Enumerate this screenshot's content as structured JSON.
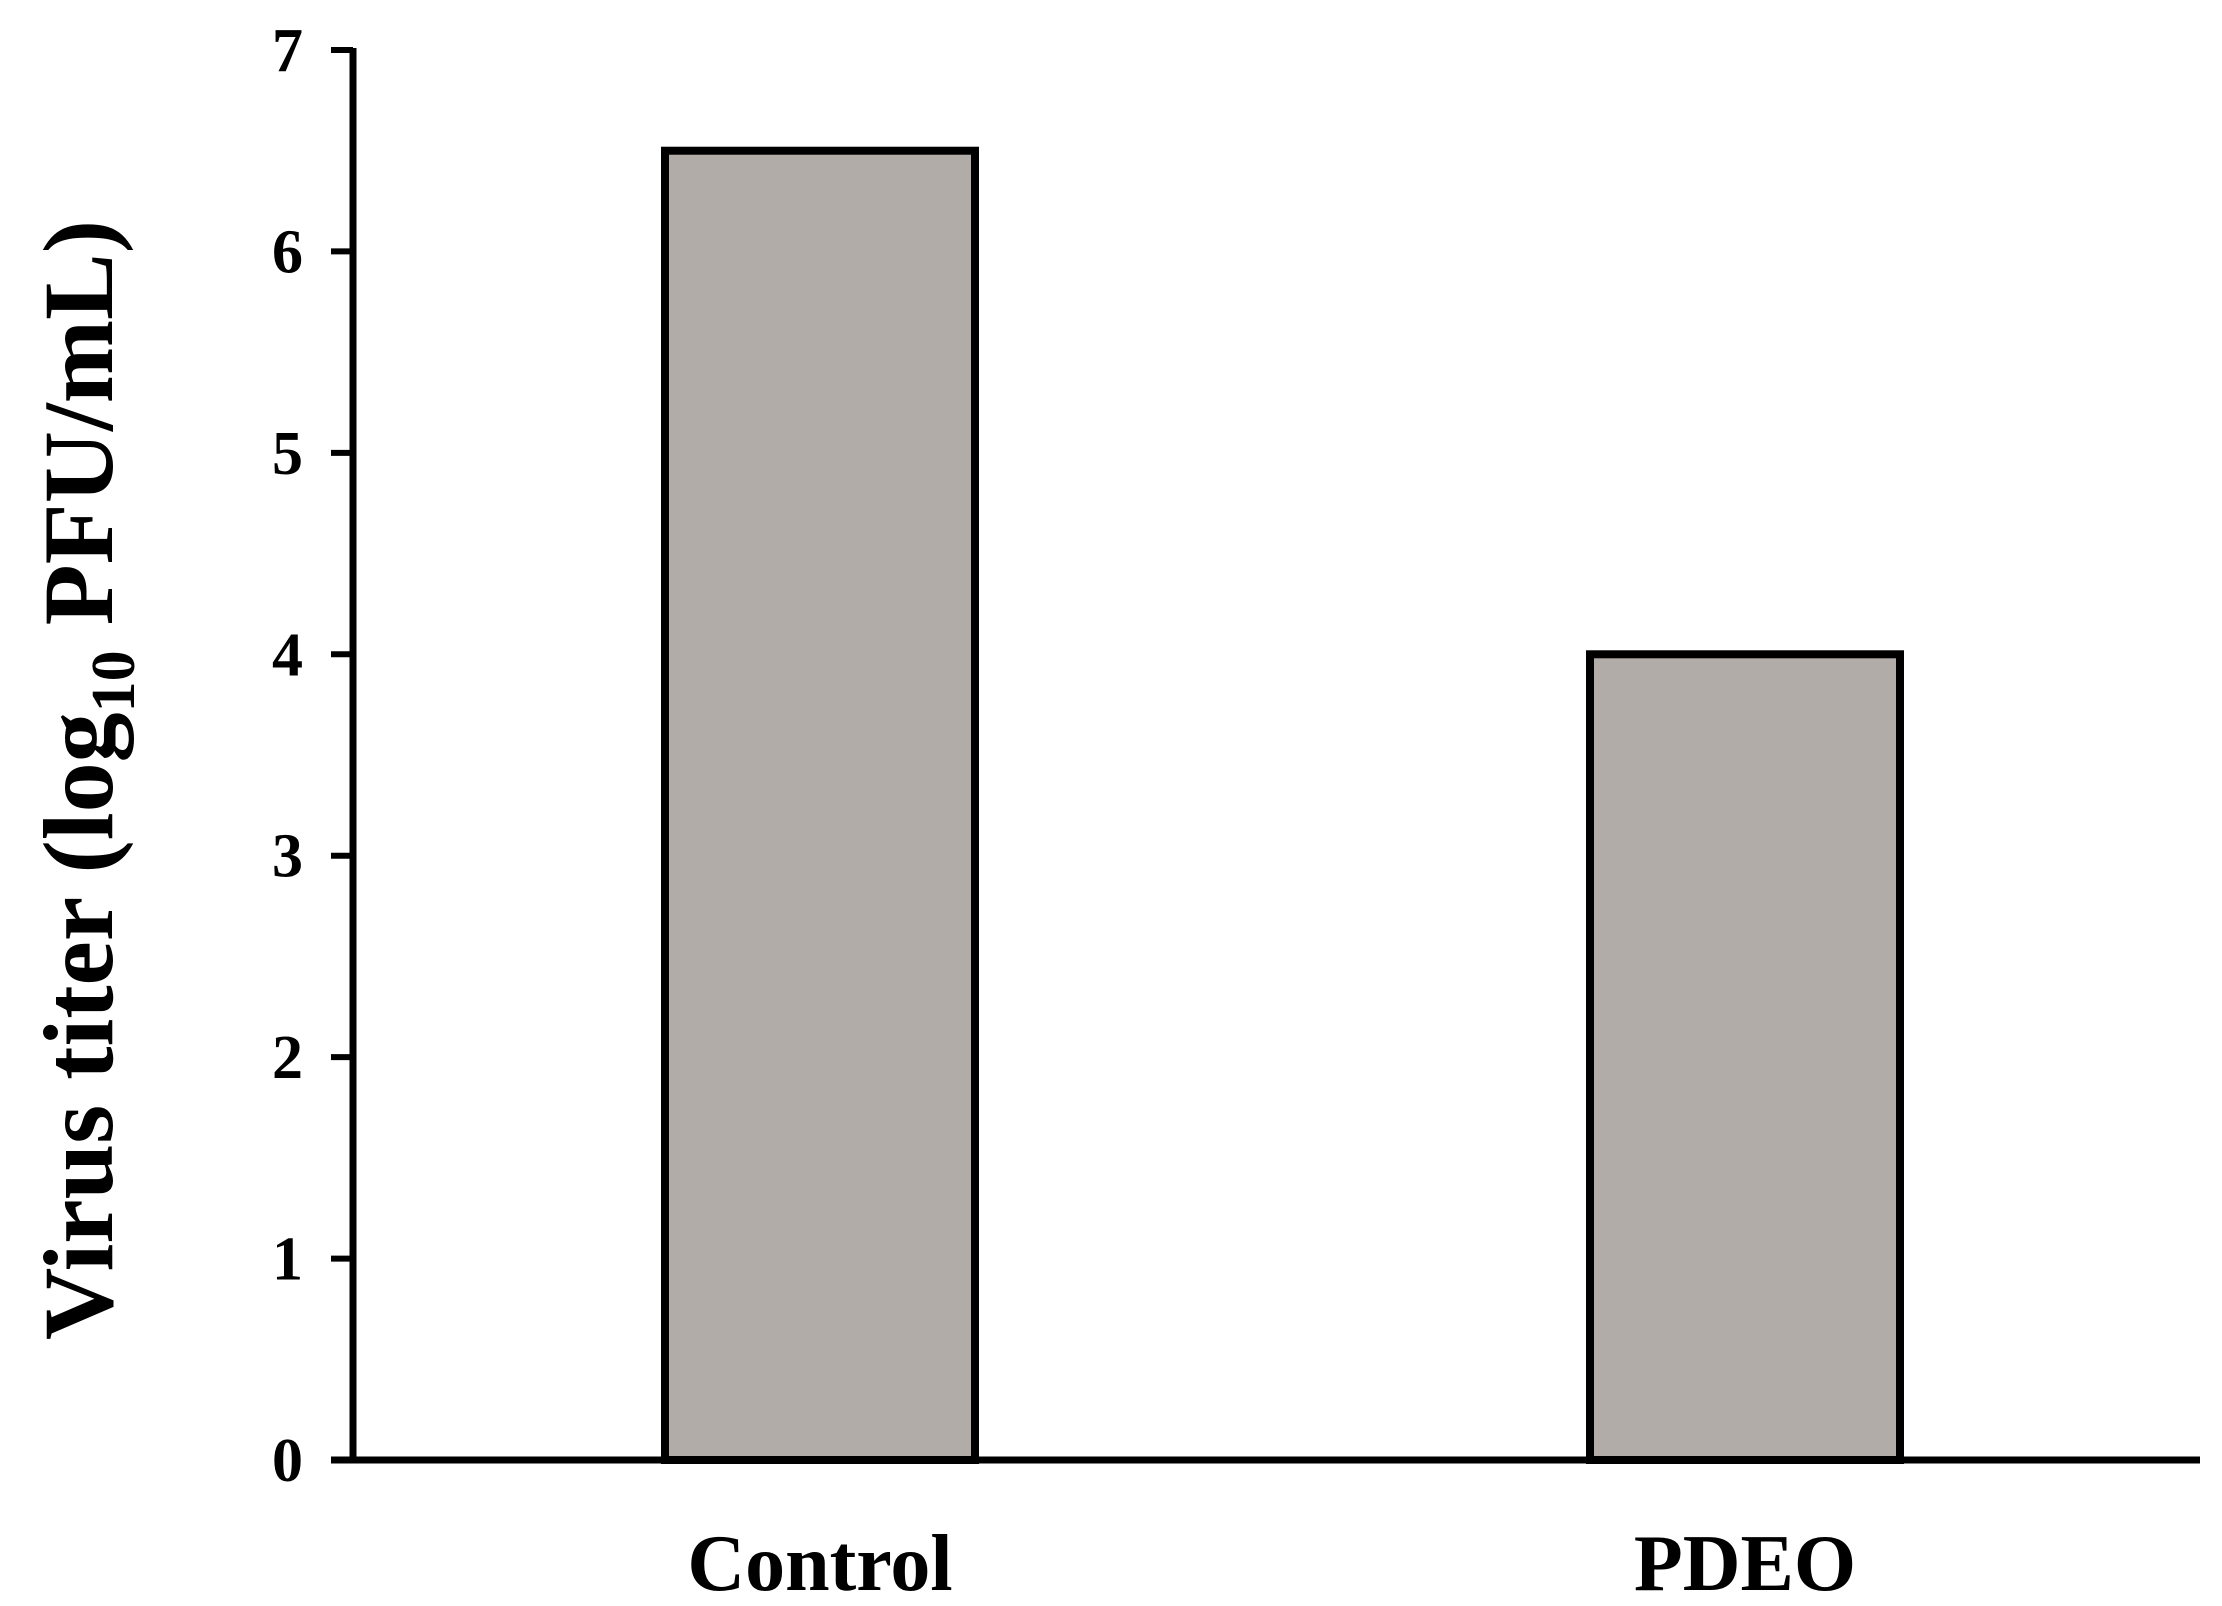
{
  "chart_data": {
    "type": "bar",
    "categories": [
      "Control",
      "PDEO"
    ],
    "values": [
      6.5,
      4.0
    ],
    "title": "",
    "xlabel": "",
    "ylabel": {
      "prefix": "Virus titer (log",
      "subscript": "10",
      "suffix": " PFU/mL)"
    },
    "ylim": [
      0,
      7
    ],
    "yticks": [
      "0",
      "1",
      "2",
      "3",
      "4",
      "5",
      "6",
      "7"
    ],
    "grid": false,
    "legend": "none",
    "colors": {
      "bar_fill": "#b2aca9",
      "bar_stroke": "#000000",
      "axis": "#000000"
    }
  }
}
